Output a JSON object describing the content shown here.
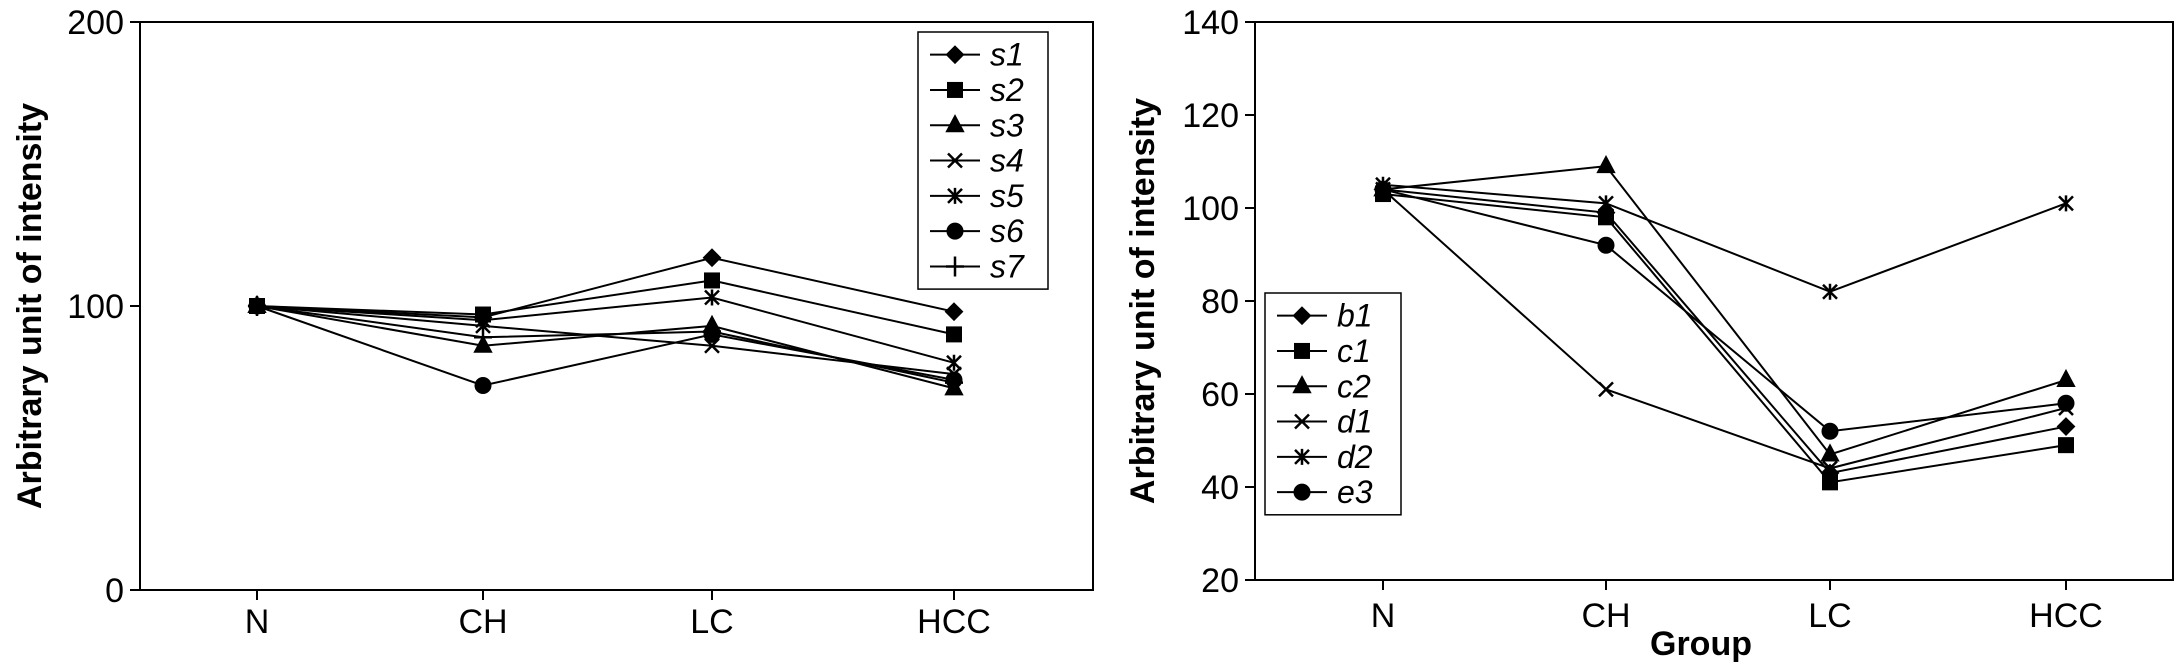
{
  "chart_data": [
    {
      "type": "line",
      "title": "",
      "xlabel": "",
      "ylabel": "Arbitrary unit of intensity",
      "categories": [
        "N",
        "CH",
        "LC",
        "HCC"
      ],
      "ylim": [
        0,
        200
      ],
      "yticks": [
        0,
        100,
        200
      ],
      "grid": false,
      "legend_position": "top-right",
      "series": [
        {
          "name": "s1",
          "marker": "diamond",
          "values": [
            100,
            96,
            117,
            98
          ]
        },
        {
          "name": "s2",
          "marker": "square",
          "values": [
            100,
            97,
            109,
            90
          ]
        },
        {
          "name": "s3",
          "marker": "triangle",
          "values": [
            100,
            86,
            93,
            71
          ]
        },
        {
          "name": "s4",
          "marker": "x",
          "values": [
            100,
            93,
            86,
            76
          ]
        },
        {
          "name": "s5",
          "marker": "star",
          "values": [
            100,
            95,
            103,
            80
          ]
        },
        {
          "name": "s6",
          "marker": "circle",
          "values": [
            100,
            72,
            90,
            74
          ]
        },
        {
          "name": "s7",
          "marker": "plus",
          "values": [
            100,
            89,
            91,
            73
          ]
        }
      ]
    },
    {
      "type": "line",
      "title": "",
      "xlabel": "Group",
      "ylabel": "Arbitrary unit of intensity",
      "categories": [
        "N",
        "CH",
        "LC",
        "HCC"
      ],
      "ylim": [
        20,
        140
      ],
      "yticks": [
        20,
        40,
        60,
        80,
        100,
        120,
        140
      ],
      "grid": false,
      "legend_position": "bottom-left",
      "series": [
        {
          "name": "b1",
          "marker": "diamond",
          "values": [
            104,
            99,
            43,
            53
          ]
        },
        {
          "name": "c1",
          "marker": "square",
          "values": [
            103,
            98,
            41,
            49
          ]
        },
        {
          "name": "c2",
          "marker": "triangle",
          "values": [
            104,
            109,
            47,
            63
          ]
        },
        {
          "name": "d1",
          "marker": "x",
          "values": [
            104,
            61,
            44,
            57
          ]
        },
        {
          "name": "d2",
          "marker": "star",
          "values": [
            105,
            101,
            82,
            101
          ]
        },
        {
          "name": "e3",
          "marker": "circle",
          "values": [
            104,
            92,
            52,
            58
          ]
        }
      ]
    }
  ]
}
